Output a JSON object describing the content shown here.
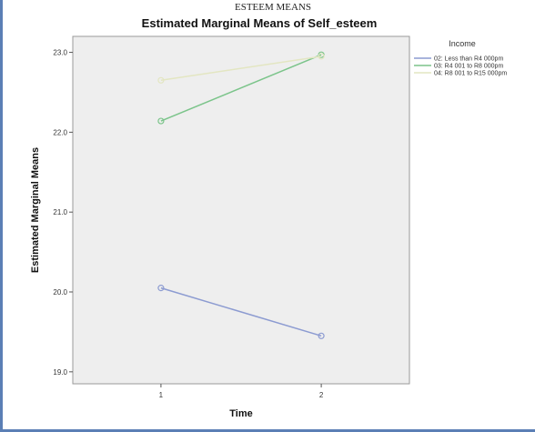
{
  "caption": "ESTEEM MEANS",
  "colors": {
    "plot_background": "#eeeeee",
    "series": [
      "#8c9bd1",
      "#7bc48a",
      "#e3e6c2"
    ]
  },
  "chart_data": {
    "type": "line",
    "title": "Estimated Marginal Means of Self_esteem",
    "xlabel": "Time",
    "ylabel": "Estimated Marginal Means",
    "x": [
      1,
      2
    ],
    "x_tick_labels": [
      "1",
      "2"
    ],
    "xlim": [
      0.45,
      2.55
    ],
    "ylim": [
      18.85,
      23.2
    ],
    "y_ticks": [
      19.0,
      20.0,
      21.0,
      22.0,
      23.0
    ],
    "y_tick_labels": [
      "19.0",
      "20.0",
      "21.0",
      "22.0",
      "23.0"
    ],
    "grid": false,
    "legend": {
      "title": "Income",
      "placement": "right",
      "entries": [
        "02: Less than R4 000pm",
        "03: R4 001 to R8 000pm",
        "04: R8 001 to R15 000pm"
      ]
    },
    "series": [
      {
        "name": "02: Less than R4 000pm",
        "values": [
          20.05,
          19.45
        ]
      },
      {
        "name": "03: R4 001 to R8 000pm",
        "values": [
          22.14,
          22.97
        ]
      },
      {
        "name": "04: R8 001 to R15 000pm",
        "values": [
          22.65,
          22.95
        ]
      }
    ]
  }
}
